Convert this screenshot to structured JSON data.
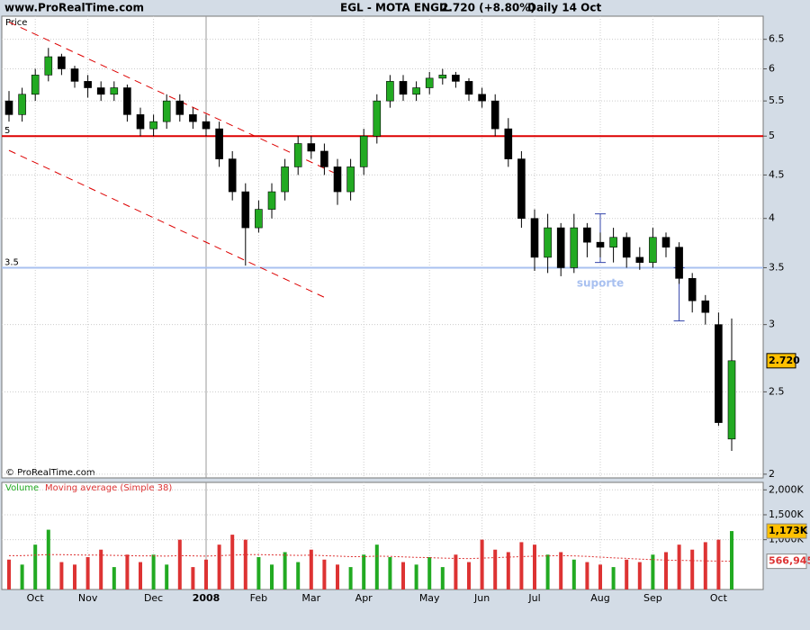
{
  "header": {
    "site": "www.ProRealTime.com",
    "symbol": "EGL - MOTA ENGIL",
    "quote": "2.720 (+8.80%)",
    "period": "Daily  14 Oct"
  },
  "chart_data": [
    {
      "type": "candlestick",
      "axis_title": "Price",
      "credit": "© ProRealTime.com",
      "log_scale": true,
      "grid": true,
      "up_color": "#22aa22",
      "down_color": "#000000",
      "categories": [
        null,
        null,
        "Oct",
        null,
        null,
        null,
        "Nov",
        null,
        null,
        null,
        null,
        "Dec",
        null,
        null,
        null,
        "2008",
        null,
        null,
        null,
        "Feb",
        null,
        null,
        null,
        "Mar",
        null,
        null,
        null,
        "Apr",
        null,
        null,
        null,
        null,
        "May",
        null,
        null,
        null,
        "Jun",
        null,
        null,
        null,
        "Jul",
        null,
        null,
        null,
        null,
        "Aug",
        null,
        null,
        null,
        "Sep",
        null,
        null,
        null,
        null,
        "Oct",
        null
      ],
      "open": [
        5.5,
        5.3,
        5.6,
        5.9,
        6.2,
        6.0,
        5.8,
        5.7,
        5.6,
        5.7,
        5.3,
        5.1,
        5.2,
        5.5,
        5.3,
        5.2,
        5.1,
        4.7,
        4.3,
        3.9,
        4.1,
        4.3,
        4.6,
        4.9,
        4.8,
        4.6,
        4.3,
        4.6,
        5.0,
        5.5,
        5.8,
        5.6,
        5.7,
        5.85,
        5.9,
        5.8,
        5.6,
        5.5,
        5.1,
        4.7,
        4.0,
        3.6,
        3.9,
        3.5,
        3.9,
        3.75,
        3.7,
        3.8,
        3.6,
        3.55,
        3.8,
        3.7,
        3.4,
        3.2,
        3.0,
        2.2
      ],
      "high": [
        5.65,
        5.7,
        6.0,
        6.35,
        6.25,
        6.05,
        5.9,
        5.8,
        5.8,
        5.75,
        5.4,
        5.3,
        5.6,
        5.6,
        5.4,
        5.3,
        5.2,
        4.8,
        4.4,
        4.2,
        4.4,
        4.7,
        5.0,
        5.0,
        4.9,
        4.7,
        4.7,
        5.1,
        5.6,
        5.9,
        5.9,
        5.8,
        5.95,
        6.0,
        5.95,
        5.85,
        5.7,
        5.6,
        5.25,
        4.8,
        4.1,
        4.05,
        3.95,
        4.05,
        3.95,
        3.85,
        3.9,
        3.85,
        3.7,
        3.9,
        3.85,
        3.75,
        3.45,
        3.25,
        3.1,
        3.05
      ],
      "low": [
        5.2,
        5.2,
        5.5,
        5.8,
        5.9,
        5.7,
        5.55,
        5.5,
        5.5,
        5.2,
        5.0,
        5.0,
        5.1,
        5.2,
        5.1,
        5.0,
        4.6,
        4.2,
        3.52,
        3.85,
        4.0,
        4.2,
        4.5,
        4.7,
        4.5,
        4.15,
        4.2,
        4.5,
        4.9,
        5.4,
        5.5,
        5.5,
        5.6,
        5.75,
        5.7,
        5.5,
        5.4,
        5.0,
        4.6,
        3.9,
        3.47,
        3.45,
        3.42,
        3.45,
        3.6,
        3.6,
        3.55,
        3.5,
        3.48,
        3.5,
        3.6,
        3.35,
        3.1,
        3.0,
        2.28,
        2.13
      ],
      "close": [
        5.3,
        5.6,
        5.9,
        6.2,
        6.0,
        5.8,
        5.7,
        5.6,
        5.7,
        5.3,
        5.1,
        5.2,
        5.5,
        5.3,
        5.2,
        5.1,
        4.7,
        4.3,
        3.9,
        4.1,
        4.3,
        4.6,
        4.9,
        4.8,
        4.6,
        4.3,
        4.6,
        5.0,
        5.5,
        5.8,
        5.6,
        5.7,
        5.85,
        5.9,
        5.8,
        5.6,
        5.5,
        5.1,
        4.7,
        4.0,
        3.6,
        3.9,
        3.5,
        3.9,
        3.75,
        3.7,
        3.8,
        3.6,
        3.55,
        3.8,
        3.7,
        3.4,
        3.2,
        3.1,
        2.3,
        2.72
      ],
      "close_labels": [
        null,
        null,
        null,
        null,
        null,
        null,
        null,
        null,
        null,
        null,
        null,
        null,
        null,
        null,
        null,
        null,
        null,
        null,
        null,
        null,
        null,
        null,
        null,
        null,
        null,
        null,
        null,
        null,
        null,
        null,
        null,
        null,
        null,
        null,
        null,
        null,
        null,
        null,
        null,
        null,
        null,
        null,
        null,
        null,
        null,
        null,
        null,
        null,
        null,
        null,
        null,
        null,
        null,
        null,
        null,
        "2.720"
      ],
      "ylim": [
        1.98,
        6.92
      ],
      "yticks": [
        2,
        2.5,
        3,
        3.5,
        4,
        4.5,
        5,
        5.5,
        6,
        6.5
      ],
      "hlines": [
        {
          "value": 5,
          "color": "#dd0000"
        },
        {
          "value": 3.5,
          "color": "#a8c0f0"
        }
      ],
      "trendlines": [
        {
          "x": [
            0,
            24.7
          ],
          "y": [
            6.81,
            4.53
          ],
          "color": "#dd0000"
        },
        {
          "x": [
            0,
            24
          ],
          "y": [
            4.81,
            3.23
          ],
          "color": "#dd0000"
        }
      ],
      "ranges": [
        {
          "x": 45,
          "y": [
            4.05,
            3.55
          ],
          "color": "#3344aa"
        },
        {
          "x": 51,
          "y": [
            3.5,
            3.03
          ],
          "color": "#3344aa"
        }
      ],
      "annotation": {
        "text": "suporte",
        "x": 45,
        "y": 3.42,
        "color": "#a8c0f0"
      }
    },
    {
      "type": "bar",
      "title_parts": [
        "Volume",
        "Moving average (Simple 38)"
      ],
      "grid": true,
      "up_color": "#22aa22",
      "down_color": "#dd3333",
      "series": [
        {
          "name": "Volume",
          "color": "#22aa22",
          "values": [
            600000,
            500000,
            900000,
            1200000,
            550000,
            500000,
            650000,
            800000,
            450000,
            700000,
            550000,
            700000,
            500000,
            1000000,
            450000,
            600000,
            900000,
            1100000,
            1000000,
            650000,
            500000,
            750000,
            550000,
            800000,
            600000,
            500000,
            450000,
            700000,
            900000,
            650000,
            550000,
            500000,
            650000,
            450000,
            700000,
            550000,
            1000000,
            800000,
            750000,
            950000,
            900000,
            700000,
            750000,
            600000,
            550000,
            500000,
            450000,
            600000,
            550000,
            700000,
            750000,
            900000,
            800000,
            950000,
            1000000,
            1173000
          ],
          "value_labels": [
            null,
            null,
            null,
            null,
            null,
            null,
            null,
            null,
            null,
            null,
            null,
            null,
            null,
            null,
            null,
            null,
            null,
            null,
            null,
            null,
            null,
            null,
            null,
            null,
            null,
            null,
            null,
            null,
            null,
            null,
            null,
            null,
            null,
            null,
            null,
            null,
            null,
            null,
            null,
            null,
            null,
            null,
            null,
            null,
            null,
            null,
            null,
            null,
            null,
            null,
            null,
            null,
            null,
            null,
            null,
            "1,173K"
          ]
        },
        {
          "name": "Moving average (Simple 38)",
          "color": "#dd3333",
          "values": [
            680000,
            680000,
            690000,
            700000,
            700000,
            695000,
            690000,
            690000,
            685000,
            680000,
            675000,
            675000,
            670000,
            680000,
            675000,
            670000,
            680000,
            690000,
            700000,
            700000,
            695000,
            690000,
            685000,
            690000,
            680000,
            670000,
            660000,
            660000,
            670000,
            665000,
            655000,
            645000,
            640000,
            630000,
            625000,
            620000,
            630000,
            640000,
            650000,
            660000,
            670000,
            675000,
            680000,
            675000,
            665000,
            650000,
            635000,
            625000,
            610000,
            600000,
            590000,
            585000,
            580000,
            575000,
            570000,
            566945
          ],
          "value_labels": [
            null,
            null,
            null,
            null,
            null,
            null,
            null,
            null,
            null,
            null,
            null,
            null,
            null,
            null,
            null,
            null,
            null,
            null,
            null,
            null,
            null,
            null,
            null,
            null,
            null,
            null,
            null,
            null,
            null,
            null,
            null,
            null,
            null,
            null,
            null,
            null,
            null,
            null,
            null,
            null,
            null,
            null,
            null,
            null,
            null,
            null,
            null,
            null,
            null,
            null,
            null,
            null,
            null,
            null,
            null,
            "566,945"
          ]
        }
      ],
      "ylim": [
        0,
        2150000
      ],
      "yticks": [
        {
          "value": 1000000,
          "label": "1,000K"
        },
        {
          "value": 1500000,
          "label": "1,500K"
        },
        {
          "value": 2000000,
          "label": "2,000K"
        }
      ]
    }
  ]
}
